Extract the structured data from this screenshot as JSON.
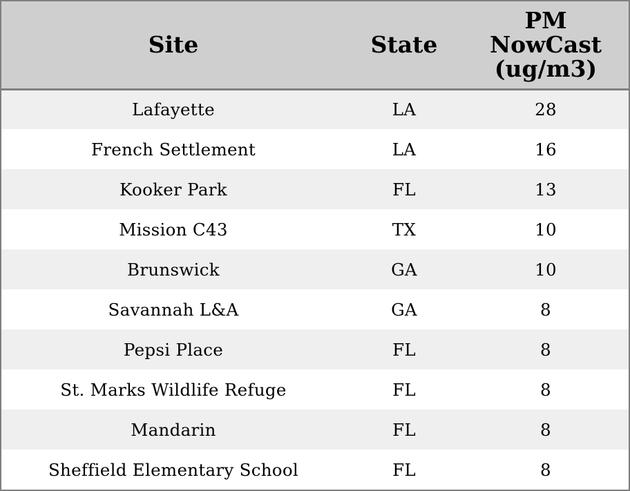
{
  "chart_data": {
    "type": "table",
    "columns": [
      "Site",
      "State",
      "PM NowCast (ug/m3)"
    ],
    "header_lines": {
      "site": "Site",
      "state": "State",
      "pm": [
        "PM",
        "NowCast",
        "(ug/m3)"
      ]
    },
    "rows": [
      {
        "site": "Lafayette",
        "state": "LA",
        "pm": "28"
      },
      {
        "site": "French Settlement",
        "state": "LA",
        "pm": "16"
      },
      {
        "site": "Kooker Park",
        "state": "FL",
        "pm": "13"
      },
      {
        "site": "Mission C43",
        "state": "TX",
        "pm": "10"
      },
      {
        "site": "Brunswick",
        "state": "GA",
        "pm": "10"
      },
      {
        "site": "Savannah L&A",
        "state": "GA",
        "pm": "8"
      },
      {
        "site": "Pepsi Place",
        "state": "FL",
        "pm": "8"
      },
      {
        "site": "St. Marks Wildlife Refuge",
        "state": "FL",
        "pm": "8"
      },
      {
        "site": "Mandarin",
        "state": "FL",
        "pm": "8"
      },
      {
        "site": "Sheffield Elementary School",
        "state": "FL",
        "pm": "8"
      }
    ],
    "colors": {
      "header_bg": "#cfcfcf",
      "row_alt_bg": "#efefef",
      "row_bg": "#ffffff",
      "border": "#7f7f7f"
    }
  }
}
